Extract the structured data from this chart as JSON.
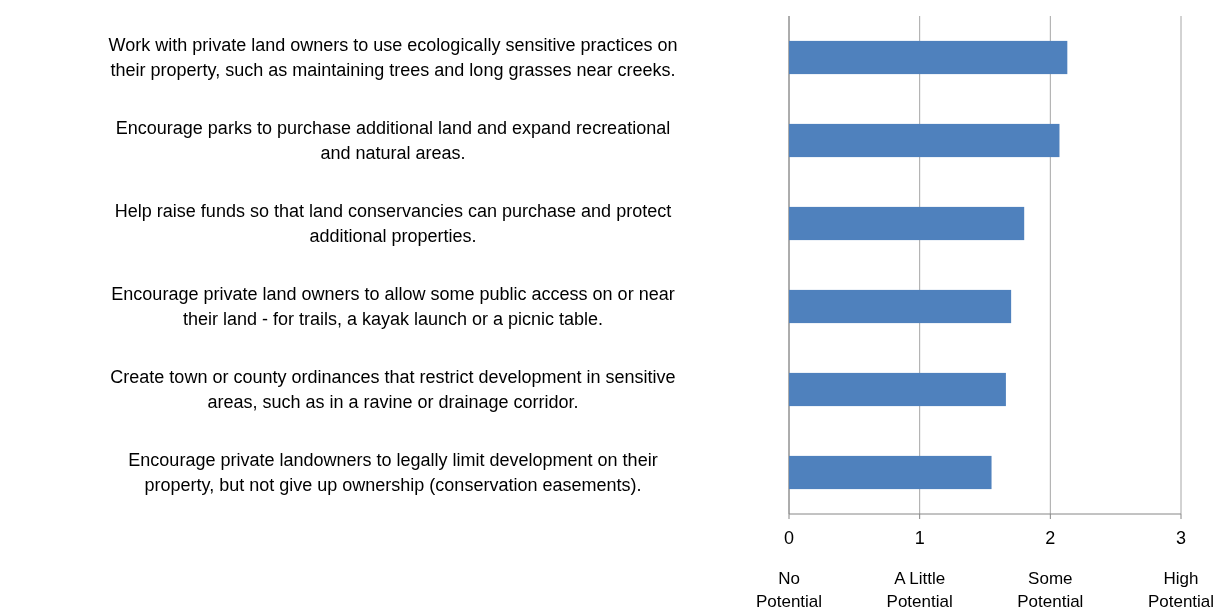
{
  "chart_data": {
    "type": "bar",
    "orientation": "horizontal",
    "categories": [
      "Work with private land owners to use ecologically sensitive practices on their property, such as maintaining trees and long grasses near creeks.",
      "Encourage parks to purchase additional land and expand recreational and natural areas.",
      "Help raise funds so that land conservancies can purchase and protect additional properties.",
      "Encourage private land owners to allow some public access on or near their land - for trails, a kayak launch or a picnic table.",
      "Create town or county ordinances that restrict development in sensitive areas, such as in a ravine or drainage corridor.",
      "Encourage private landowners to legally limit development on their property, but not give up ownership (conservation easements)."
    ],
    "values": [
      2.13,
      2.07,
      1.8,
      1.7,
      1.66,
      1.55
    ],
    "color": "#4f81bd",
    "xlim": [
      0,
      3
    ],
    "xticks": [
      0,
      1,
      2,
      3
    ],
    "grid": "x",
    "annotations": [
      "No Potential",
      "A Little Potential",
      "Some Potential",
      "High Potential"
    ]
  }
}
